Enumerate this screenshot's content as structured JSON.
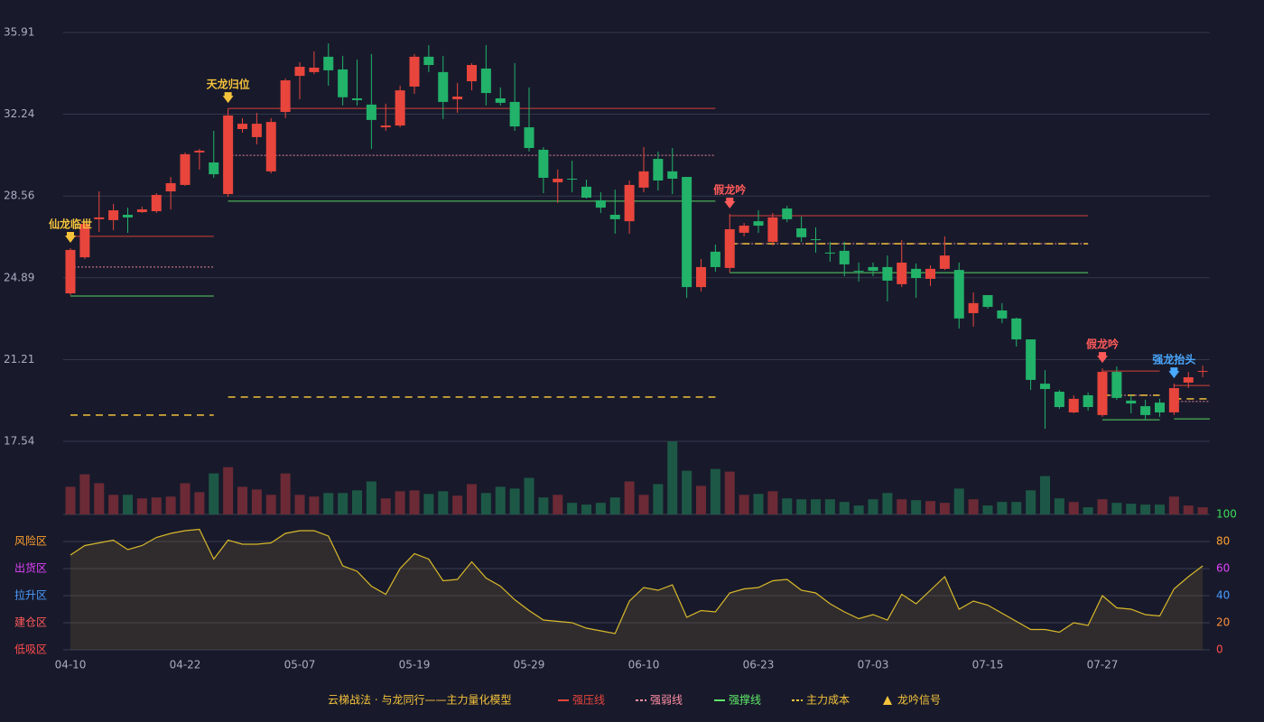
{
  "chart_data": {
    "type": "candlestick",
    "title": "云梯战法 · 与龙同行——主力量化模型",
    "categories": [
      "04-10",
      null,
      null,
      null,
      null,
      null,
      null,
      null,
      "04-22",
      null,
      null,
      null,
      null,
      null,
      null,
      null,
      "05-07",
      null,
      null,
      null,
      null,
      null,
      null,
      null,
      "05-19",
      null,
      null,
      null,
      null,
      null,
      null,
      null,
      "05-29",
      null,
      null,
      null,
      null,
      null,
      null,
      null,
      "06-10",
      null,
      null,
      null,
      null,
      null,
      null,
      null,
      "06-23",
      null,
      null,
      null,
      null,
      null,
      null,
      null,
      "07-03",
      null,
      null,
      null,
      null,
      null,
      null,
      null,
      "07-15",
      null,
      null,
      null,
      null,
      null,
      null,
      null,
      "07-27",
      null,
      null,
      null,
      null,
      null,
      null,
      null
    ],
    "open": [
      24.19,
      25.81,
      27.52,
      27.48,
      27.72,
      27.84,
      27.88,
      28.77,
      29.06,
      30.52,
      30.07,
      28.65,
      31.57,
      31.21,
      29.67,
      32.34,
      33.96,
      34.13,
      34.82,
      34.25,
      32.95,
      32.67,
      31.65,
      31.73,
      33.48,
      34.82,
      34.13,
      32.91,
      33.72,
      34.29,
      32.95,
      32.79,
      31.65,
      30.64,
      29.18,
      29.34,
      28.98,
      28.37,
      27.72,
      27.43,
      28.94,
      30.23,
      29.67,
      29.42,
      24.47,
      26.06,
      25.33,
      26.91,
      27.43,
      26.5,
      28.0,
      27.11,
      26.62,
      26.02,
      26.1,
      25.2,
      25.37,
      25.37,
      24.6,
      25.29,
      24.84,
      25.29,
      25.24,
      23.3,
      24.11,
      23.42,
      23.06,
      22.12,
      20.13,
      19.77,
      18.84,
      19.61,
      18.72,
      20.66,
      19.37,
      19.12,
      19.28,
      18.84,
      20.18,
      20.66
    ],
    "high": [
      26.22,
      27.39,
      28.77,
      28.21,
      28.04,
      28.08,
      28.69,
      29.42,
      30.52,
      30.68,
      31.49,
      32.5,
      32.06,
      32.3,
      32.06,
      33.84,
      34.57,
      35.06,
      35.42,
      34.86,
      34.69,
      34.94,
      32.71,
      33.52,
      34.94,
      35.34,
      34.86,
      33.64,
      34.53,
      35.34,
      33.44,
      34.53,
      33.44,
      30.76,
      29.75,
      30.15,
      29.3,
      28.73,
      28.85,
      29.26,
      30.76,
      30.56,
      30.72,
      29.42,
      25.73,
      26.38,
      27.76,
      27.35,
      27.92,
      27.8,
      28.12,
      27.64,
      27.15,
      26.5,
      26.5,
      25.57,
      25.57,
      25.89,
      26.58,
      25.53,
      25.45,
      26.75,
      25.57,
      24.23,
      24.11,
      23.75,
      23.1,
      22.12,
      20.74,
      19.85,
      19.61,
      19.73,
      20.82,
      20.9,
      19.61,
      19.41,
      19.45,
      20.13,
      20.66,
      20.94
    ],
    "low": [
      24.11,
      25.73,
      26.95,
      27.03,
      26.91,
      27.8,
      27.8,
      27.96,
      29.02,
      29.75,
      29.38,
      28.53,
      31.41,
      30.88,
      29.58,
      32.06,
      32.91,
      34.04,
      33.52,
      32.63,
      32.63,
      30.68,
      31.49,
      31.65,
      33.15,
      34.13,
      32.02,
      32.3,
      33.31,
      32.63,
      32.63,
      31.49,
      30.56,
      28.69,
      28.25,
      28.73,
      28.45,
      27.8,
      26.87,
      26.87,
      28.73,
      28.81,
      28.65,
      23.99,
      24.27,
      25.16,
      25.12,
      26.75,
      26.91,
      26.34,
      27.39,
      26.5,
      26.02,
      25.61,
      24.96,
      24.72,
      24.96,
      23.83,
      24.47,
      23.99,
      24.52,
      25.24,
      22.61,
      22.69,
      23.5,
      22.85,
      21.8,
      19.85,
      18.11,
      19.0,
      18.8,
      18.92,
      18.64,
      19.41,
      18.8,
      18.48,
      18.64,
      18.72,
      19.93,
      20.42
    ],
    "close": [
      26.14,
      27.31,
      27.6,
      27.92,
      27.6,
      27.96,
      28.61,
      29.14,
      30.44,
      30.6,
      29.54,
      32.18,
      31.81,
      31.81,
      31.89,
      33.76,
      34.37,
      34.33,
      34.21,
      33.0,
      32.87,
      31.98,
      31.73,
      33.31,
      34.82,
      34.45,
      32.79,
      33.03,
      34.45,
      33.19,
      32.75,
      31.69,
      30.72,
      29.38,
      29.34,
      29.3,
      28.49,
      28.04,
      27.52,
      29.06,
      29.67,
      29.26,
      29.34,
      24.47,
      25.37,
      25.37,
      27.07,
      27.23,
      27.23,
      27.6,
      27.52,
      26.71,
      26.58,
      25.98,
      25.49,
      25.16,
      25.2,
      24.76,
      25.57,
      24.88,
      25.29,
      25.89,
      23.06,
      23.75,
      23.58,
      23.06,
      22.12,
      20.3,
      19.89,
      19.08,
      19.45,
      19.08,
      20.66,
      19.49,
      19.24,
      18.72,
      18.84,
      19.93,
      20.42,
      20.7
    ],
    "volume": [
      31,
      45,
      35,
      22,
      22,
      18,
      19,
      20,
      35,
      25,
      46,
      53,
      31,
      28,
      22,
      46,
      22,
      20,
      24,
      24,
      27,
      37,
      18,
      26,
      27,
      23,
      26,
      21,
      34,
      24,
      31,
      29,
      41,
      19,
      22,
      13,
      11,
      13,
      19,
      37,
      22,
      34,
      82,
      49,
      32,
      51,
      48,
      22,
      23,
      26,
      18,
      17,
      17,
      17,
      14,
      10,
      17,
      24,
      17,
      16,
      15,
      13,
      29,
      17,
      10,
      14,
      14,
      27,
      43,
      18,
      14,
      8,
      17,
      13,
      12,
      11,
      11,
      20,
      10,
      8
    ],
    "up_color": "#e8453c",
    "down_color": "#22b26a",
    "ylim": [
      17.54,
      35.91
    ],
    "yticks": [
      17.54,
      21.21,
      24.89,
      28.56,
      32.24,
      35.91
    ],
    "grid": true,
    "levels": [
      {
        "name": "强压线",
        "color": "#e8453c",
        "style": "solid"
      },
      {
        "name": "强弱线",
        "color": "#ff8fa3",
        "style": "dotted"
      },
      {
        "name": "强撑线",
        "color": "#5fe86a",
        "style": "solid"
      },
      {
        "name": "主力成本",
        "color": "#f5c33b",
        "style": "dashed"
      }
    ],
    "segments": [
      {
        "from": 0,
        "to": 10,
        "values": [
          26.75,
          25.37,
          24.07,
          18.72
        ]
      },
      {
        "from": 11,
        "to": 45,
        "values": [
          32.5,
          30.39,
          28.33,
          19.53
        ]
      },
      {
        "from": 46,
        "to": 71,
        "values": [
          27.68,
          26.42,
          25.12,
          26.42
        ]
      },
      {
        "from": 72,
        "to": 76,
        "values": [
          20.7,
          19.61,
          18.51,
          19.61
        ]
      },
      {
        "from": 77,
        "to": 79,
        "values": [
          20.05,
          19.33,
          18.55,
          19.45
        ]
      }
    ],
    "signal_legend": {
      "name": "龙吟信号",
      "color": "#f5c33b"
    },
    "signals": [
      {
        "label": "仙龙临世",
        "index": 0,
        "color": "#f5c33b"
      },
      {
        "label": "天龙归位",
        "index": 11,
        "color": "#f5c33b"
      },
      {
        "label": "假龙吟",
        "index": 46,
        "color": "#ff5a5a"
      },
      {
        "label": "假龙吟",
        "index": 72,
        "color": "#ff5a5a"
      },
      {
        "label": "强龙抬头",
        "index": 77,
        "color": "#4aa8ff"
      }
    ],
    "indicator": {
      "values": [
        70,
        77,
        79,
        81,
        74,
        77,
        83,
        86,
        88,
        89,
        67,
        81,
        78,
        78,
        79,
        86,
        88,
        88,
        84,
        62,
        58,
        47,
        41,
        60,
        71,
        67,
        51,
        52,
        65,
        53,
        47,
        37,
        29,
        22,
        21,
        20,
        16,
        14,
        12,
        36,
        46,
        44,
        48,
        24,
        29,
        28,
        42,
        45,
        46,
        51,
        52,
        44,
        42,
        34,
        28,
        23,
        26,
        22,
        41,
        34,
        44,
        54,
        30,
        36,
        33,
        27,
        21,
        15,
        15,
        13,
        20,
        18,
        40,
        31,
        30,
        26,
        25,
        45,
        54,
        62
      ],
      "color": "#d9b92a",
      "ylim": [
        0,
        100
      ],
      "yticks": [
        0,
        20,
        40,
        60,
        80,
        100
      ],
      "ytick_colors": [
        "#ff4d4d",
        "#ff8c3a",
        "#4a9bff",
        "#e040fb",
        "#ff9f2e",
        "#3ddc5a"
      ],
      "zones": [
        {
          "label": "风险区",
          "value": 80,
          "color": "#ff9f2e"
        },
        {
          "label": "出货区",
          "value": 60,
          "color": "#e040fb"
        },
        {
          "label": "拉升区",
          "value": 40,
          "color": "#4a9bff"
        },
        {
          "label": "建仓区",
          "value": 20,
          "color": "#ff5a5a"
        },
        {
          "label": "低吸区",
          "value": 0,
          "color": "#ff4d4d"
        }
      ]
    }
  }
}
